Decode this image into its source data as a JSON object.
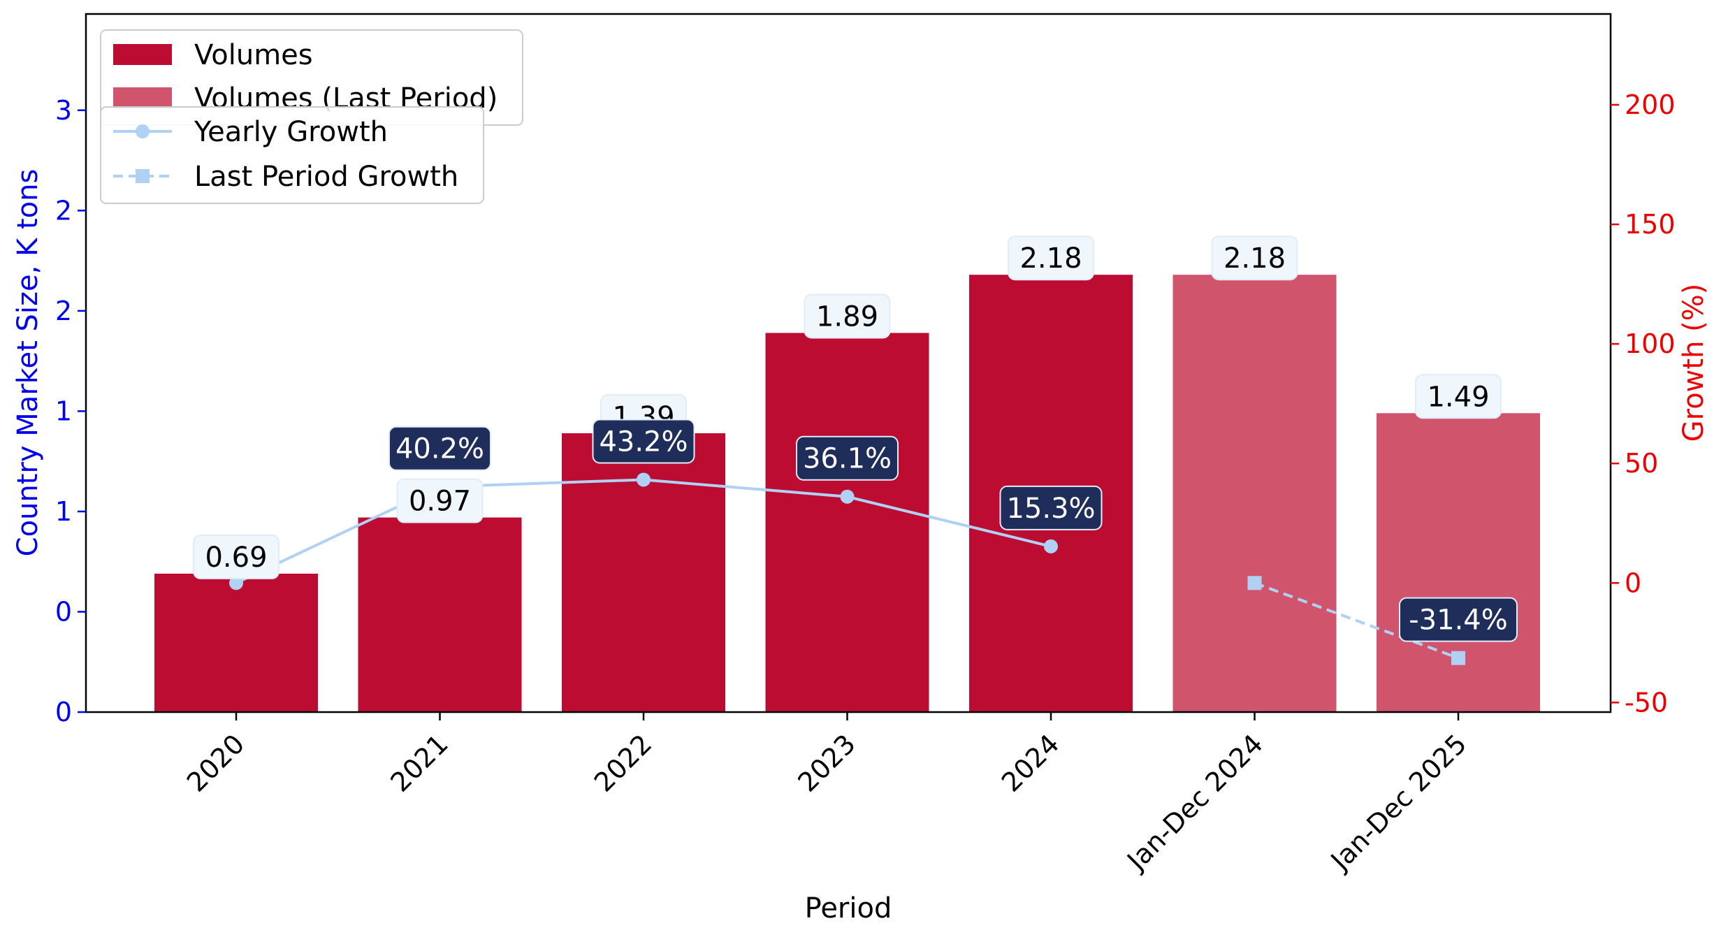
{
  "chart_data": {
    "type": "bar",
    "categories": [
      "2020",
      "2021",
      "2022",
      "2023",
      "2024",
      "Jan-Dec 2024",
      "Jan-Dec 2025"
    ],
    "xlabel": "Period",
    "ylabel_left": "Country Market Size, K tons",
    "ylabel_right": "Growth (%)",
    "left_axis": {
      "tick_labels": [
        "0",
        "0",
        "1",
        "1",
        "2",
        "2",
        "3"
      ]
    },
    "right_axis": {
      "ticks": [
        -50,
        0,
        50,
        100,
        150,
        200
      ],
      "ylim": [
        -54,
        238
      ]
    },
    "grid": false,
    "legend_position": "top-left",
    "series": [
      {
        "name": "Volumes",
        "kind": "bar",
        "color": "#bc0c32",
        "values": [
          0.69,
          0.97,
          1.39,
          1.89,
          2.18,
          null,
          null
        ],
        "labels": [
          "0.69",
          "0.97",
          "1.39",
          "1.89",
          "2.18",
          "",
          ""
        ]
      },
      {
        "name": "Volumes (Last Period)",
        "kind": "bar",
        "color": "#d0546c",
        "values": [
          null,
          null,
          null,
          null,
          null,
          2.18,
          1.49
        ],
        "labels": [
          "",
          "",
          "",
          "",
          "",
          "2.18",
          "1.49"
        ]
      },
      {
        "name": "Yearly Growth",
        "kind": "line",
        "axis": "right",
        "color": "#b0d0f4",
        "marker": "circle",
        "linestyle": "solid",
        "values": [
          0,
          40.2,
          43.2,
          36.1,
          15.3,
          null,
          null
        ],
        "labels": [
          "",
          "40.2%",
          "43.2%",
          "36.1%",
          "15.3%",
          "",
          ""
        ]
      },
      {
        "name": "Last Period Growth",
        "kind": "line",
        "axis": "right",
        "color": "#b0d0f4",
        "marker": "square",
        "linestyle": "dashed",
        "values": [
          null,
          null,
          null,
          null,
          null,
          0,
          -31.4
        ],
        "labels": [
          "",
          "",
          "",
          "",
          "",
          "",
          "-31.4%"
        ]
      }
    ],
    "colors": {
      "left_axis": "#0000ee",
      "right_axis": "#ee0000",
      "value_label_bg": "#eff6fc",
      "growth_label_bg": "#1f2d5a"
    }
  }
}
